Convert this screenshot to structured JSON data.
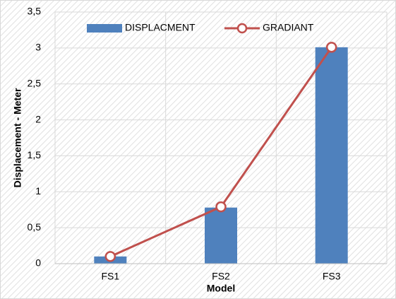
{
  "chart_data": {
    "type": "bar",
    "y_label": "Displacement - Meter",
    "x_label": "Model",
    "categories": [
      "FS1",
      "FS2",
      "FS3"
    ],
    "series": [
      {
        "name": "DISPLACMENT",
        "type": "bar",
        "color": "#4f81bd",
        "values": [
          0.1,
          0.78,
          3.01
        ]
      },
      {
        "name": "GRADIANT",
        "type": "line",
        "color": "#c0504d",
        "values": [
          0.1,
          0.79,
          3.01
        ]
      }
    ],
    "ylim": [
      0,
      3.5
    ],
    "yticks": [
      0,
      {
        "value": 0.5,
        "label": "0,5"
      },
      1,
      {
        "value": 1.5,
        "label": "1,5"
      },
      2,
      {
        "value": 2.5,
        "label": "2,5"
      },
      3,
      {
        "value": 3.5,
        "label": "3,5"
      }
    ],
    "grid": true,
    "legend": "top"
  }
}
